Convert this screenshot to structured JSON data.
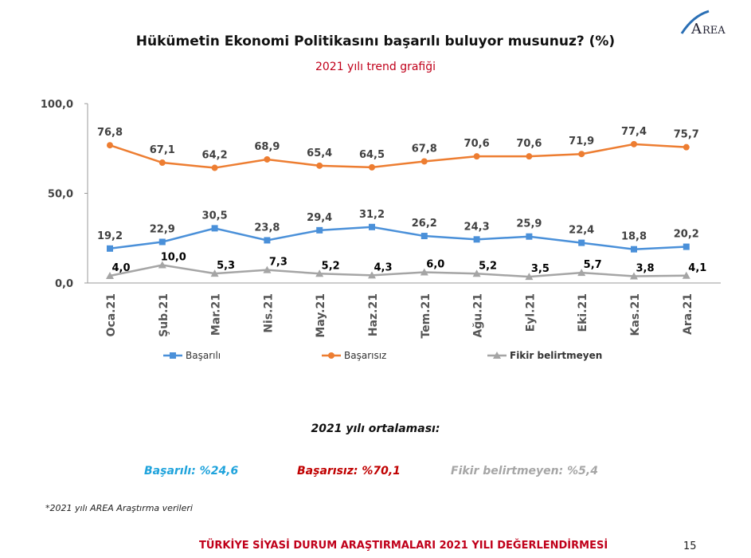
{
  "header": {
    "title": "Hükümetin Ekonomi Politikasını başarılı buluyor musunuz? (%)",
    "subtitle": "2021 yılı trend grafiği",
    "logo_text": "AREA"
  },
  "chart_data": {
    "type": "line",
    "categories": [
      "Oca.21",
      "Şub.21",
      "Mar.21",
      "Nis.21",
      "May.21",
      "Haz.21",
      "Tem.21",
      "Ağu.21",
      "Eyl.21",
      "Eki.21",
      "Kas.21",
      "Ara.21"
    ],
    "ylim": [
      0,
      100
    ],
    "yticks": [
      "0,0",
      "50,0",
      "100,0"
    ],
    "ytick_values": [
      0,
      50,
      100
    ],
    "legend_position": "bottom",
    "grid": false,
    "series": [
      {
        "name": "Başarılı",
        "color": "#4a90d9",
        "marker": "square",
        "values": [
          19.2,
          22.9,
          30.5,
          23.8,
          29.4,
          31.2,
          26.2,
          24.3,
          25.9,
          22.4,
          18.8,
          20.2
        ],
        "labels": [
          "19,2",
          "22,9",
          "30,5",
          "23,8",
          "29,4",
          "31,2",
          "26,2",
          "24,3",
          "25,9",
          "22,4",
          "18,8",
          "20,2"
        ]
      },
      {
        "name": "Başarısız",
        "color": "#ed7d31",
        "marker": "circle",
        "values": [
          76.8,
          67.1,
          64.2,
          68.9,
          65.4,
          64.5,
          67.8,
          70.6,
          70.6,
          71.9,
          77.4,
          75.7
        ],
        "labels": [
          "76,8",
          "67,1",
          "64,2",
          "68,9",
          "65,4",
          "64,5",
          "67,8",
          "70,6",
          "70,6",
          "71,9",
          "77,4",
          "75,7"
        ]
      },
      {
        "name": "Fikir belirtmeyen",
        "color": "#a5a5a5",
        "marker": "triangle",
        "values": [
          4.0,
          10.0,
          5.3,
          7.3,
          5.2,
          4.3,
          6.0,
          5.2,
          3.5,
          5.7,
          3.8,
          4.1
        ],
        "labels": [
          "4,0",
          "10,0",
          "5,3",
          "7,3",
          "5,2",
          "4,3",
          "6,0",
          "5,2",
          "3,5",
          "5,7",
          "3,8",
          "4,1"
        ]
      }
    ]
  },
  "averages": {
    "heading": "2021 yılı ortalaması:",
    "items": [
      {
        "text": "Başarılı: %24,6",
        "color": "#1fa3dc"
      },
      {
        "text": "Başarısız: %70,1",
        "color": "#c00000"
      },
      {
        "text": "Fikir belirtmeyen: %5,4",
        "color": "#a6a6a6"
      }
    ]
  },
  "footer": {
    "note": "*2021 yılı AREA Araştırma verileri",
    "title": "TÜRKİYE SİYASİ DURUM ARAŞTIRMALARI 2021 YILI DEĞERLENDİRMESİ",
    "page": "15"
  }
}
